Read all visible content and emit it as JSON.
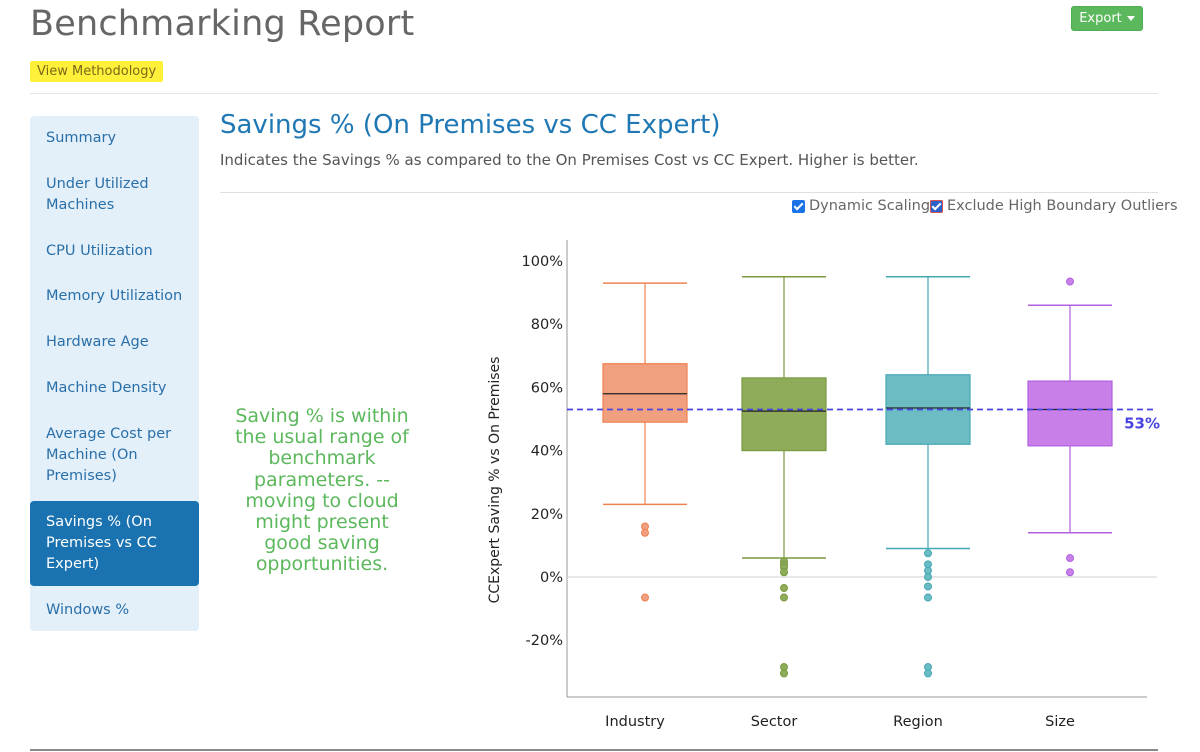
{
  "header": {
    "title": "Benchmarking Report",
    "export_label": "Export",
    "methodology_label": "View Methodology"
  },
  "sidebar": {
    "items": [
      {
        "label": "Summary"
      },
      {
        "label": "Under Utilized Machines"
      },
      {
        "label": "CPU Utilization"
      },
      {
        "label": "Memory Utilization"
      },
      {
        "label": "Hardware Age"
      },
      {
        "label": "Machine Density"
      },
      {
        "label": "Average Cost per Machine (On Premises)"
      },
      {
        "label": "Savings % (On Premises vs CC Expert)",
        "active": true
      },
      {
        "label": "Windows %"
      }
    ]
  },
  "main": {
    "title": "Savings % (On Premises vs CC Expert)",
    "description": "Indicates the Savings % as compared to the On Premises Cost vs CC Expert. Higher is better.",
    "options": {
      "dynamic_scaling": {
        "label": "Dynamic Scaling",
        "checked": true
      },
      "exclude_outliers": {
        "label": "Exclude High Boundary Outliers",
        "checked": true
      }
    },
    "insight": "Saving % is within the usual range of benchmark parameters. -- moving to cloud might present good saving opportunities."
  },
  "chart_data": {
    "type": "box",
    "ylabel": "CCExpert Saving % vs On Premises",
    "xlabel": "",
    "ylim": [
      -35,
      100
    ],
    "yticks": [
      100,
      80,
      60,
      40,
      20,
      0,
      -20
    ],
    "ytick_labels": [
      "100%",
      "80%",
      "60%",
      "40%",
      "20%",
      "0%",
      "-20%"
    ],
    "grid": false,
    "reference_line": {
      "value": 53,
      "label": "53%",
      "color": "#4a44e0"
    },
    "series": [
      {
        "category": "Industry",
        "color": "#f0a07f",
        "stroke": "#f08050",
        "min": 23,
        "q1": 49,
        "median": 58,
        "q3": 67.5,
        "max": 93,
        "outliers": [
          16,
          14,
          -6.5
        ]
      },
      {
        "category": "Sector",
        "color": "#8fac5a",
        "stroke": "#7a9a40",
        "min": 6,
        "q1": 40,
        "median": 52.5,
        "q3": 63,
        "max": 95,
        "outliers": [
          5,
          4,
          3,
          1.5,
          -3.5,
          -6.5,
          -28.5,
          -30.5
        ]
      },
      {
        "category": "Region",
        "color": "#6cbcc4",
        "stroke": "#45a8b5",
        "min": 9,
        "q1": 42,
        "median": 53.5,
        "q3": 64,
        "max": 95,
        "outliers": [
          7.5,
          4,
          2,
          0,
          -3,
          -6.5,
          -28.5,
          -30.5
        ]
      },
      {
        "category": "Size",
        "color": "#c880e8",
        "stroke": "#b060e0",
        "min": 14,
        "q1": 41.5,
        "median": 53,
        "q3": 62,
        "max": 86,
        "outliers": [
          93.5,
          6,
          1.5
        ]
      }
    ]
  }
}
